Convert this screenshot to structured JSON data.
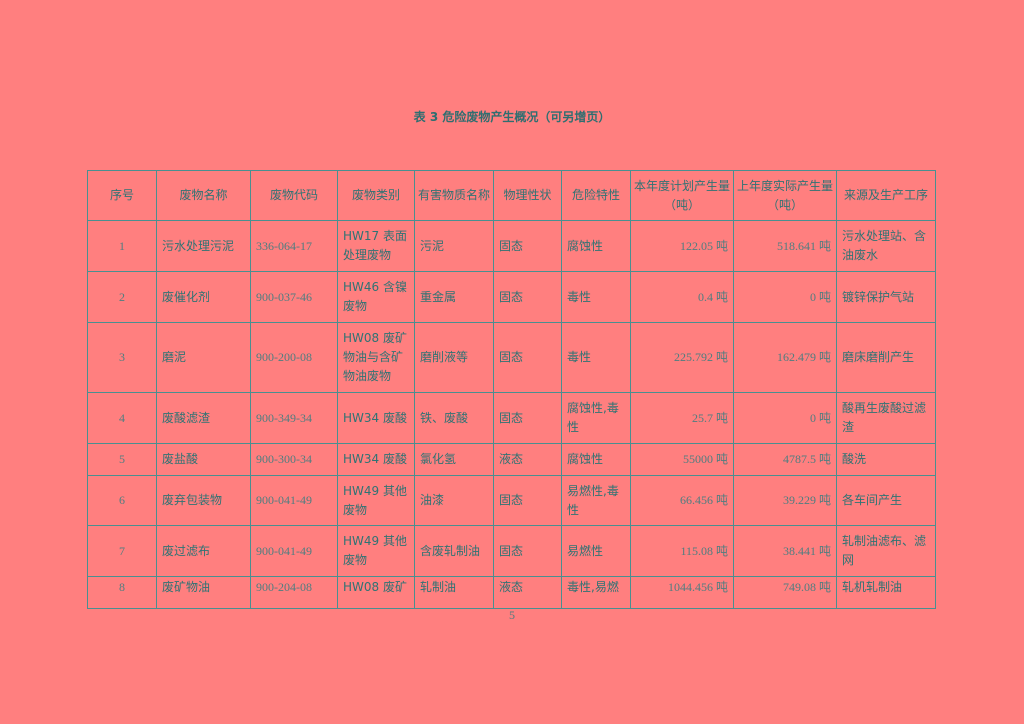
{
  "title": "表 3 危险废物产生概况（可另增页）",
  "headers": [
    "序号",
    "废物名称",
    "废物代码",
    "废物类别",
    "有害物质名称",
    "物理性状",
    "危险特性",
    "本年度计划产生量（吨）",
    "上年度实际产生量（吨）",
    "来源及生产工序"
  ],
  "rows": [
    {
      "no": "1",
      "name": "污水处理污泥",
      "code": "336-064-17",
      "category": "HW17 表面处理废物",
      "substance": "污泥",
      "state": "固态",
      "hazard": "腐蚀性",
      "planned": "122.05 吨",
      "actual": "518.641 吨",
      "source": "污水处理站、含油废水"
    },
    {
      "no": "2",
      "name": "废催化剂",
      "code": "900-037-46",
      "category": "HW46 含镍废物",
      "substance": "重金属",
      "state": "固态",
      "hazard": "毒性",
      "planned": "0.4 吨",
      "actual": "0 吨",
      "source": "镀锌保护气站"
    },
    {
      "no": "3",
      "name": "磨泥",
      "code": "900-200-08",
      "category": "HW08 废矿物油与含矿物油废物",
      "substance": "磨削液等",
      "state": "固态",
      "hazard": "毒性",
      "planned": "225.792 吨",
      "actual": "162.479 吨",
      "source": "磨床磨削产生"
    },
    {
      "no": "4",
      "name": "废酸滤渣",
      "code": "900-349-34",
      "category": "HW34 废酸",
      "substance": "铁、废酸",
      "state": "固态",
      "hazard": "腐蚀性,毒性",
      "planned": "25.7 吨",
      "actual": "0 吨",
      "source": "酸再生废酸过滤渣"
    },
    {
      "no": "5",
      "name": "废盐酸",
      "code": "900-300-34",
      "category": "HW34 废酸",
      "substance": "氯化氢",
      "state": "液态",
      "hazard": "腐蚀性",
      "planned": "55000 吨",
      "actual": "4787.5 吨",
      "source": "酸洗"
    },
    {
      "no": "6",
      "name": "废弃包装物",
      "code": "900-041-49",
      "category": "HW49 其他废物",
      "substance": "油漆",
      "state": "固态",
      "hazard": "易燃性,毒性",
      "planned": "66.456 吨",
      "actual": "39.229 吨",
      "source": "各车间产生"
    },
    {
      "no": "7",
      "name": "废过滤布",
      "code": "900-041-49",
      "category": "HW49 其他废物",
      "substance": "含废轧制油",
      "state": "固态",
      "hazard": "易燃性",
      "planned": "115.08 吨",
      "actual": "38.441 吨",
      "source": "轧制油滤布、滤网"
    },
    {
      "no": "8",
      "name": "废矿物油",
      "code": "900-204-08",
      "category": "HW08 废矿",
      "substance": "轧制油",
      "state": "液态",
      "hazard": "毒性,易燃",
      "planned": "1044.456 吨",
      "actual": "749.08 吨",
      "source": "轧机轧制油"
    }
  ],
  "page_number": "5"
}
